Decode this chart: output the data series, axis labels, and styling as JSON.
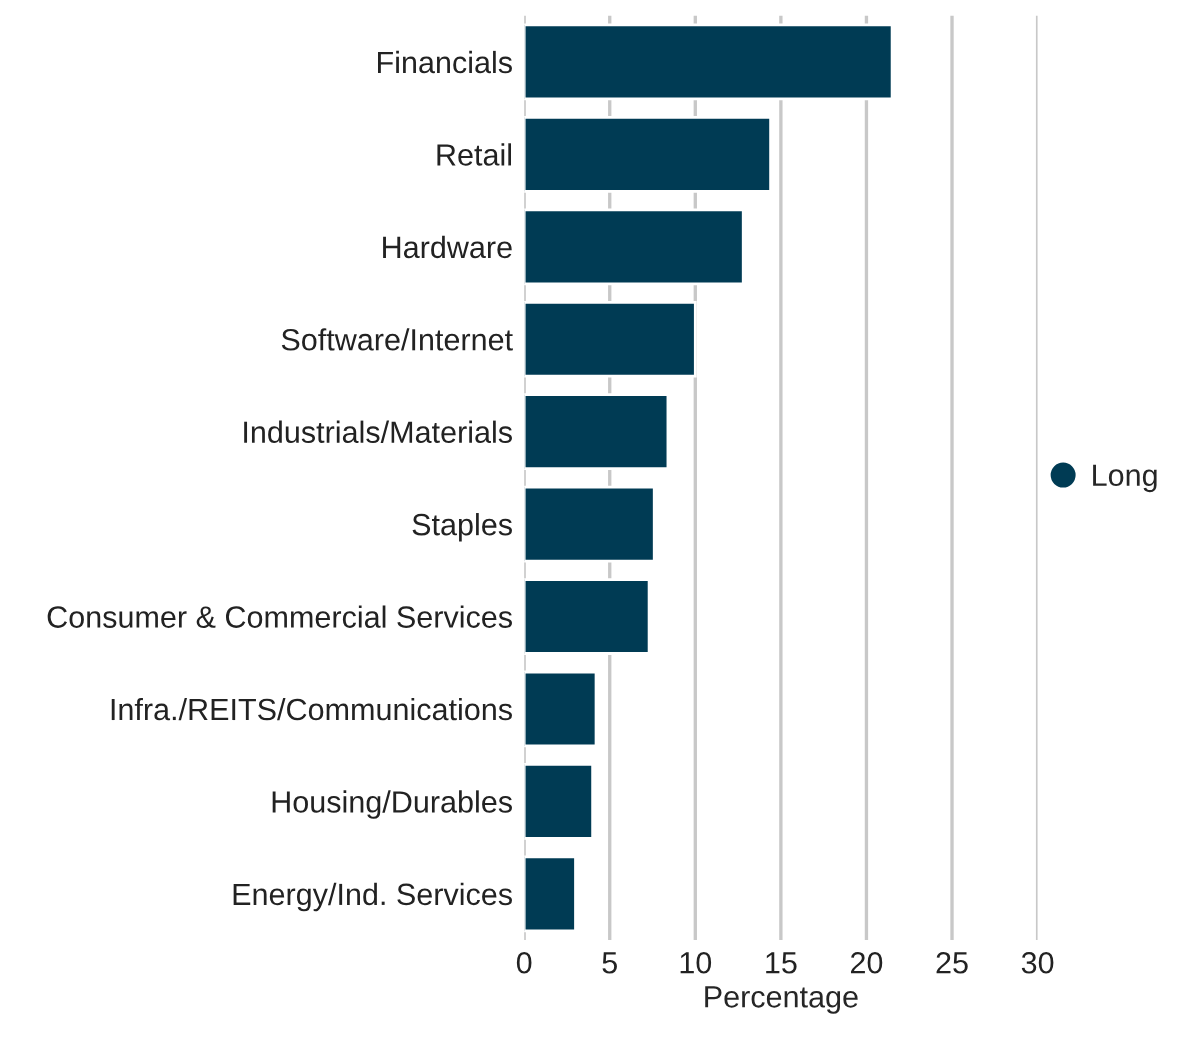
{
  "chart_data": {
    "type": "bar",
    "orientation": "horizontal",
    "xlabel": "Percentage",
    "categories": [
      "Financials",
      "Retail",
      "Hardware",
      "Software/Internet",
      "Industrials/Materials",
      "Staples",
      "Consumer & Commercial Services",
      "Infra./REITS/Communications",
      "Housing/Durables",
      "Energy/Ind. Services"
    ],
    "series": [
      {
        "name": "Long",
        "color": "#003b54",
        "values": [
          21.5,
          14.4,
          12.8,
          10.0,
          8.4,
          7.6,
          7.3,
          4.2,
          4.0,
          3.0
        ]
      }
    ],
    "xlim": [
      0,
      30
    ],
    "xticks": [
      0,
      5,
      10,
      15,
      20,
      25,
      30
    ],
    "grid": "x",
    "legend": "right",
    "marker": "circle"
  }
}
